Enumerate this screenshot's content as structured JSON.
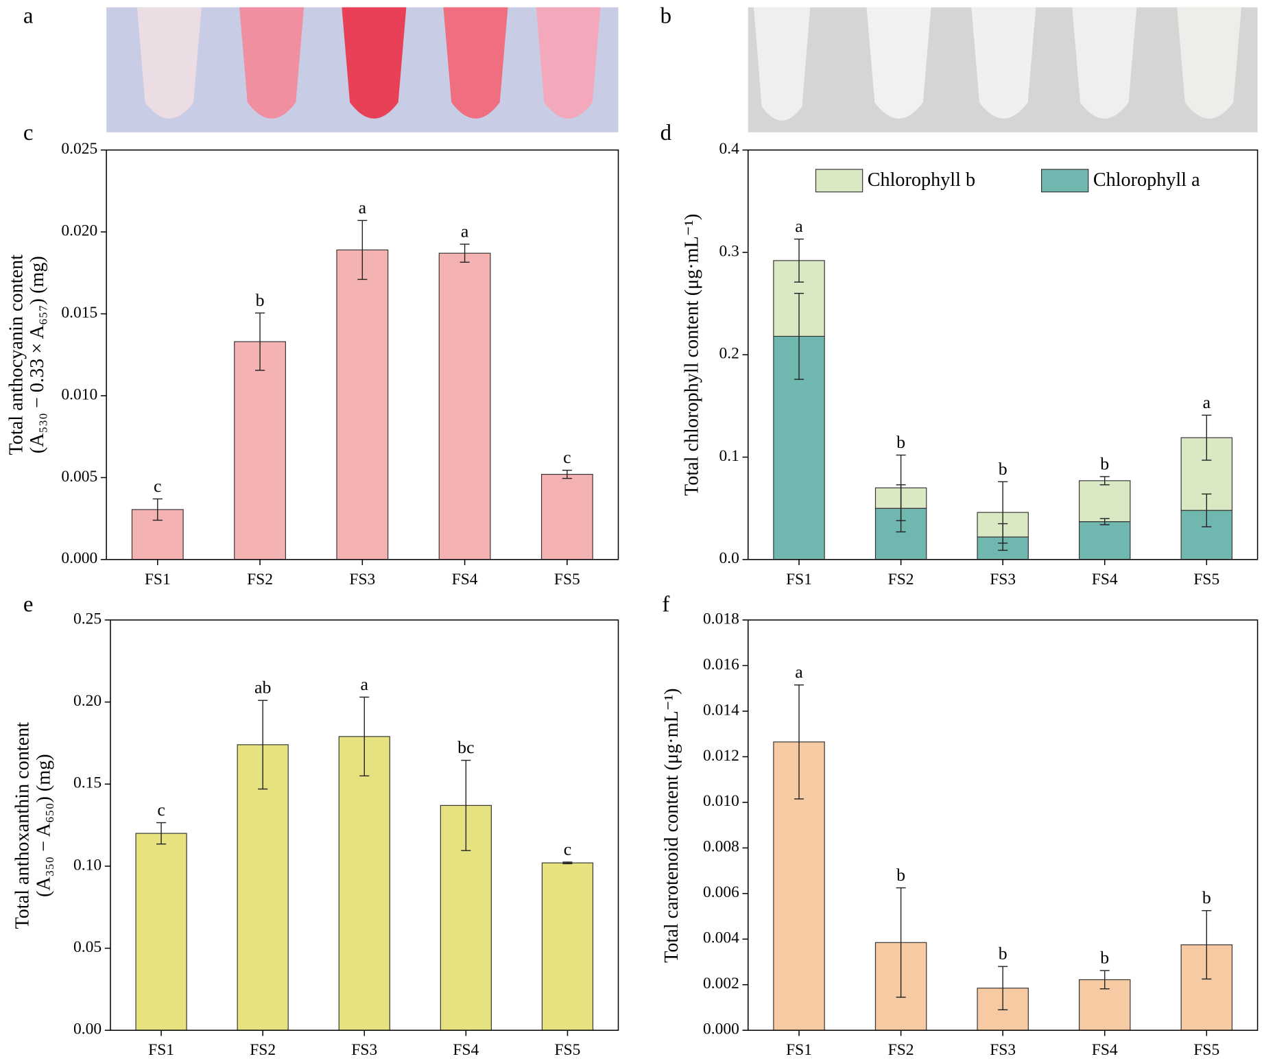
{
  "photos": [
    {
      "panel": "a"
    },
    {
      "panel": "b"
    }
  ],
  "chart_data": [
    {
      "type": "bar",
      "panel": "c",
      "ylabel": [
        "Total anthocyanin content",
        "(A₅₃₀ − 0.33 × A₆₅₇) (mg)"
      ],
      "categories": [
        "FS1",
        "FS2",
        "FS3",
        "FS4",
        "FS5"
      ],
      "color": "#f4b2b2",
      "values": [
        0.00305,
        0.0133,
        0.0189,
        0.0187,
        0.0052
      ],
      "errors": [
        0.00065,
        0.00175,
        0.0018,
        0.00055,
        0.00025
      ],
      "annotations": [
        "c",
        "b",
        "a",
        "a",
        "c"
      ],
      "ylim": [
        0,
        0.025
      ],
      "yticks": [
        {
          "value": 0,
          "label": "0.000"
        },
        0.005,
        {
          "value": 0.01,
          "label": "0.010"
        },
        0.015,
        {
          "value": 0.02,
          "label": "0.020"
        },
        0.025
      ]
    },
    {
      "type": "stacked-bar",
      "panel": "d",
      "ylabel": [
        "Total chlorophyll content (μg·mL⁻¹)"
      ],
      "categories": [
        "FS1",
        "FS2",
        "FS3",
        "FS4",
        "FS5"
      ],
      "legend": "top",
      "series": [
        {
          "name": "Chlorophyll a",
          "color": "#70b7af",
          "values": [
            0.218,
            0.05,
            0.022,
            0.037,
            0.048
          ],
          "errors": [
            0.042,
            0.023,
            0.013,
            0.003,
            0.016
          ]
        },
        {
          "name": "Chlorophyll b",
          "color": "#dbe8c4",
          "values": [
            0.074,
            0.02,
            0.024,
            0.04,
            0.071
          ],
          "errors": [
            0.021,
            0.032,
            0.03,
            0.004,
            0.022
          ]
        }
      ],
      "annotations": [
        "a",
        "b",
        "b",
        "b",
        "a"
      ],
      "ylim": [
        0,
        0.4
      ],
      "yticks": [
        {
          "value": 0,
          "label": "0.0"
        },
        0.1,
        0.2,
        0.3,
        0.4
      ]
    },
    {
      "type": "bar",
      "panel": "e",
      "ylabel": [
        "Total anthoxanthin content",
        "(A₃₅₀ − A₆₅₀) (mg)"
      ],
      "categories": [
        "FS1",
        "FS2",
        "FS3",
        "FS4",
        "FS5"
      ],
      "color": "#e5e27f",
      "values": [
        0.12,
        0.174,
        0.179,
        0.137,
        0.102
      ],
      "errors": [
        0.0065,
        0.027,
        0.024,
        0.0275,
        0.0005
      ],
      "annotations": [
        "c",
        "ab",
        "a",
        "bc",
        "c"
      ],
      "ylim": [
        0,
        0.25
      ],
      "yticks": [
        {
          "value": 0,
          "label": "0.00"
        },
        0.05,
        {
          "value": 0.1,
          "label": "0.10"
        },
        0.15,
        {
          "value": 0.2,
          "label": "0.20"
        },
        0.25
      ]
    },
    {
      "type": "bar",
      "panel": "f",
      "ylabel": [
        "Total carotenoid content (μg·mL⁻¹)"
      ],
      "categories": [
        "FS1",
        "FS2",
        "FS3",
        "FS4",
        "FS5"
      ],
      "color": "#f6caa2",
      "values": [
        0.01265,
        0.00385,
        0.00185,
        0.00222,
        0.00375
      ],
      "errors": [
        0.0025,
        0.0024,
        0.00095,
        0.0004,
        0.0015
      ],
      "annotations": [
        "a",
        "b",
        "b",
        "b",
        "b"
      ],
      "ylim": [
        0,
        0.018
      ],
      "yticks": [
        {
          "value": 0,
          "label": "0.000"
        },
        0.002,
        0.004,
        0.006,
        0.008,
        {
          "value": 0.01,
          "label": "0.010"
        },
        0.012,
        0.014,
        0.016,
        0.018
      ]
    }
  ]
}
